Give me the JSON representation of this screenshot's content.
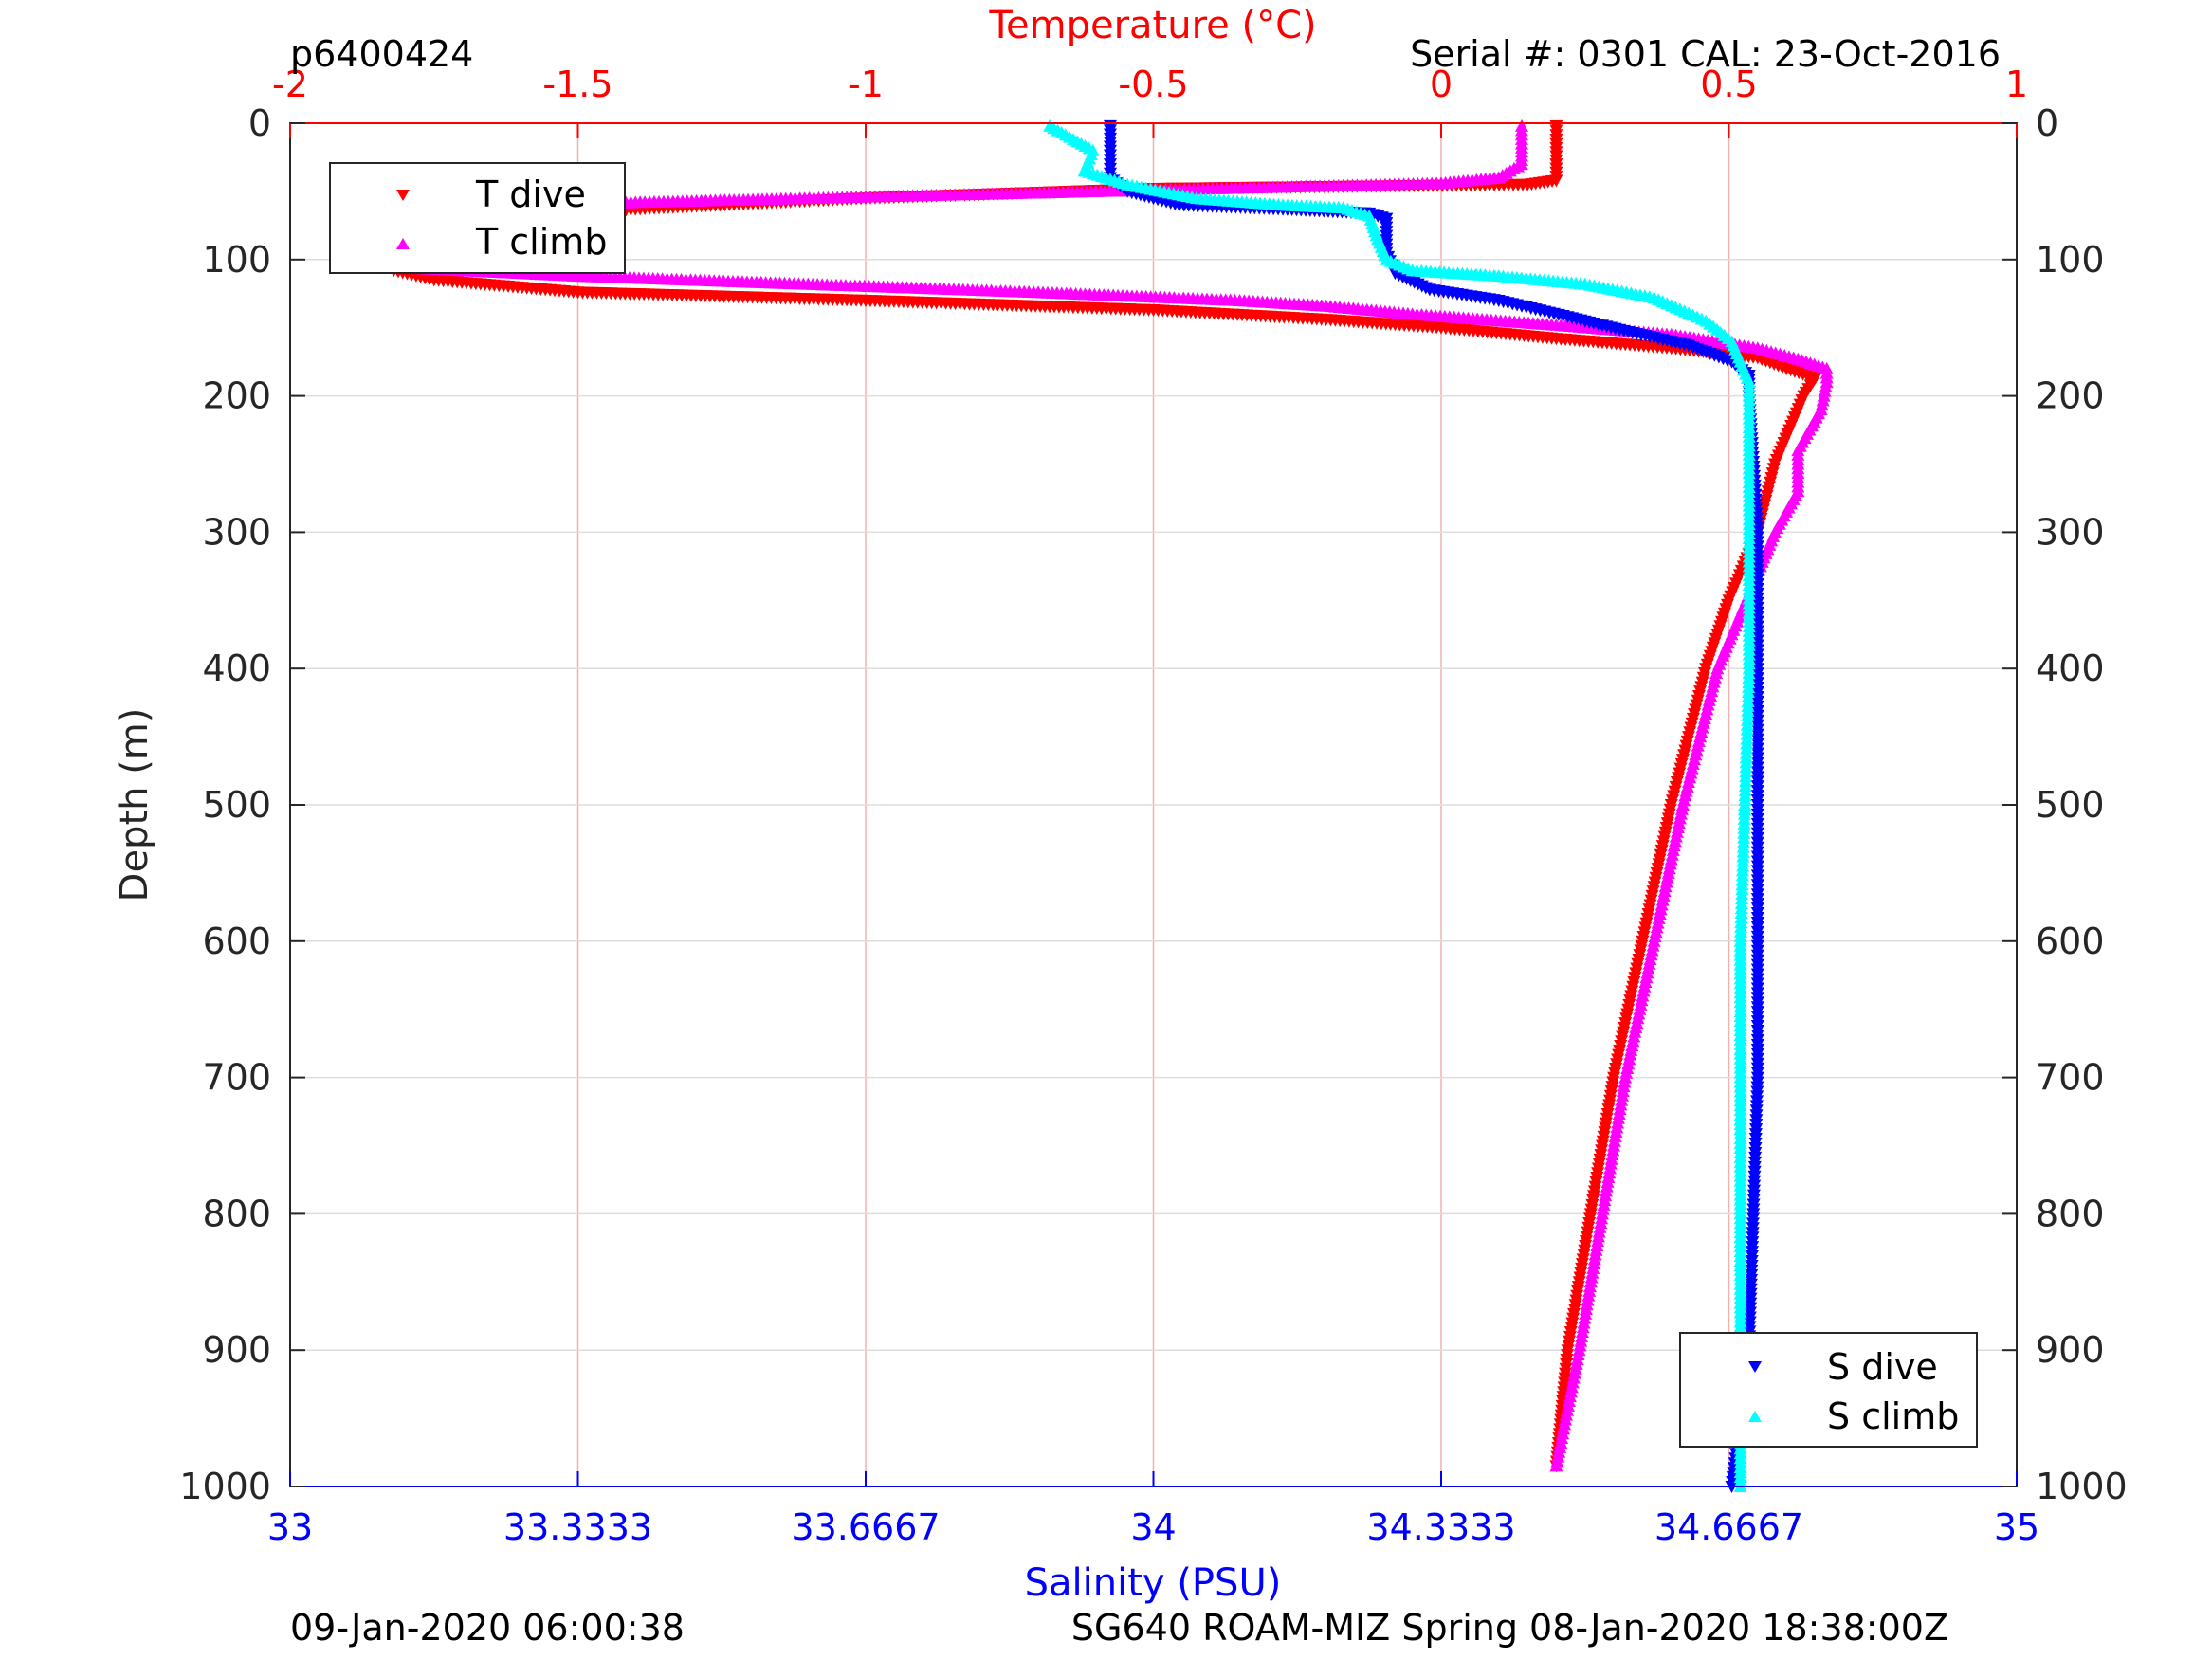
{
  "header": {
    "dive_id": "p6400424",
    "serial": "Serial #: 0301  CAL: 23-Oct-2016"
  },
  "footer": {
    "left": "09-Jan-2020 06:00:38",
    "right": "SG640 ROAM-MIZ Spring 08-Jan-2020 18:38:00Z"
  },
  "colors": {
    "temperature_axis": "#ff0000",
    "salinity_axis": "#0000ff",
    "t_dive": "#ff0000",
    "t_climb": "#ff00ff",
    "s_dive": "#0000ff",
    "s_climb": "#00ffff",
    "grid": "#dddddd",
    "temp_grid": "#f4b0b0"
  },
  "chart_data": {
    "type": "scatter",
    "title": "",
    "grid": true,
    "y_axis": {
      "label": "Depth (m)",
      "range": [
        0,
        1000
      ],
      "reversed": true,
      "ticks": [
        "0",
        "100",
        "200",
        "300",
        "400",
        "500",
        "600",
        "700",
        "800",
        "900",
        "1000"
      ]
    },
    "x_axis_top": {
      "label": "Temperature (°C)",
      "range": [
        -2,
        1
      ],
      "ticks": [
        "-2",
        "-1.5",
        "-1",
        "-0.5",
        "0",
        "0.5",
        "1"
      ]
    },
    "x_axis_bottom": {
      "label": "Salinity (PSU)",
      "range": [
        33,
        35
      ],
      "ticks": [
        "33",
        "33.3333",
        "33.6667",
        "34",
        "34.3333",
        "34.6667",
        "35"
      ]
    },
    "legends": [
      {
        "placement": "top-left",
        "entries": [
          "T dive",
          "T climb"
        ]
      },
      {
        "placement": "bottom-right",
        "entries": [
          "S dive",
          "S climb"
        ]
      }
    ],
    "series": [
      {
        "name": "T dive",
        "axis": "temperature",
        "marker": "triangle-down",
        "points": [
          [
            0.2,
            2
          ],
          [
            0.2,
            15
          ],
          [
            0.2,
            30
          ],
          [
            0.2,
            42
          ],
          [
            0.15,
            45
          ],
          [
            -0.5,
            48
          ],
          [
            -1,
            55
          ],
          [
            -1.4,
            63
          ],
          [
            -1.68,
            70
          ],
          [
            -1.8,
            80
          ],
          [
            -1.83,
            90
          ],
          [
            -1.84,
            100
          ],
          [
            -1.82,
            108
          ],
          [
            -1.75,
            115
          ],
          [
            -1.5,
            124
          ],
          [
            -1.0,
            130
          ],
          [
            -0.5,
            137
          ],
          [
            -0.2,
            144
          ],
          [
            0.0,
            150
          ],
          [
            0.2,
            158
          ],
          [
            0.4,
            165
          ],
          [
            0.55,
            172
          ],
          [
            0.6,
            180
          ],
          [
            0.65,
            187
          ],
          [
            0.63,
            200
          ],
          [
            0.58,
            250
          ],
          [
            0.55,
            300
          ],
          [
            0.5,
            350
          ],
          [
            0.46,
            400
          ],
          [
            0.4,
            500
          ],
          [
            0.35,
            600
          ],
          [
            0.3,
            700
          ],
          [
            0.26,
            800
          ],
          [
            0.22,
            900
          ],
          [
            0.2,
            985
          ]
        ]
      },
      {
        "name": "T climb",
        "axis": "temperature",
        "marker": "triangle-up",
        "points": [
          [
            0.14,
            2
          ],
          [
            0.14,
            15
          ],
          [
            0.14,
            30
          ],
          [
            0.1,
            40
          ],
          [
            0.0,
            44
          ],
          [
            -0.3,
            47
          ],
          [
            -0.6,
            50
          ],
          [
            -1.0,
            54
          ],
          [
            -1.4,
            58
          ],
          [
            -1.65,
            63
          ],
          [
            -1.78,
            75
          ],
          [
            -1.82,
            90
          ],
          [
            -1.82,
            100
          ],
          [
            -1.8,
            106
          ],
          [
            -1.5,
            112
          ],
          [
            -1.1,
            118
          ],
          [
            -0.7,
            124
          ],
          [
            -0.35,
            130
          ],
          [
            -0.2,
            134
          ],
          [
            -0.05,
            140
          ],
          [
            0.2,
            148
          ],
          [
            0.4,
            155
          ],
          [
            0.55,
            165
          ],
          [
            0.62,
            173
          ],
          [
            0.67,
            180
          ],
          [
            0.67,
            190
          ],
          [
            0.66,
            210
          ],
          [
            0.62,
            240
          ],
          [
            0.62,
            270
          ],
          [
            0.58,
            300
          ],
          [
            0.53,
            350
          ],
          [
            0.48,
            400
          ],
          [
            0.42,
            500
          ],
          [
            0.37,
            600
          ],
          [
            0.32,
            700
          ],
          [
            0.28,
            800
          ],
          [
            0.24,
            900
          ],
          [
            0.2,
            985
          ]
        ]
      },
      {
        "name": "S dive",
        "axis": "salinity",
        "marker": "triangle-down",
        "points": [
          [
            33.95,
            2
          ],
          [
            33.95,
            20
          ],
          [
            33.95,
            40
          ],
          [
            33.97,
            50
          ],
          [
            34.03,
            60
          ],
          [
            34.15,
            63
          ],
          [
            34.25,
            66
          ],
          [
            34.27,
            70
          ],
          [
            34.27,
            95
          ],
          [
            34.28,
            110
          ],
          [
            34.32,
            122
          ],
          [
            34.4,
            130
          ],
          [
            34.48,
            142
          ],
          [
            34.55,
            153
          ],
          [
            34.62,
            163
          ],
          [
            34.67,
            175
          ],
          [
            34.69,
            185
          ],
          [
            34.69,
            200
          ],
          [
            34.7,
            300
          ],
          [
            34.7,
            500
          ],
          [
            34.7,
            700
          ],
          [
            34.69,
            900
          ],
          [
            34.67,
            1000
          ]
        ]
      },
      {
        "name": "S climb",
        "axis": "salinity",
        "marker": "triangle-up",
        "points": [
          [
            33.88,
            2
          ],
          [
            33.93,
            20
          ],
          [
            33.92,
            35
          ],
          [
            33.97,
            45
          ],
          [
            34.05,
            55
          ],
          [
            34.15,
            60
          ],
          [
            34.22,
            62
          ],
          [
            34.25,
            68
          ],
          [
            34.26,
            85
          ],
          [
            34.27,
            100
          ],
          [
            34.3,
            108
          ],
          [
            34.4,
            112
          ],
          [
            34.5,
            118
          ],
          [
            34.58,
            128
          ],
          [
            34.64,
            145
          ],
          [
            34.67,
            160
          ],
          [
            34.68,
            175
          ],
          [
            34.69,
            190
          ],
          [
            34.69,
            250
          ],
          [
            34.69,
            400
          ],
          [
            34.68,
            600
          ],
          [
            34.68,
            800
          ],
          [
            34.68,
            1000
          ]
        ]
      }
    ]
  }
}
